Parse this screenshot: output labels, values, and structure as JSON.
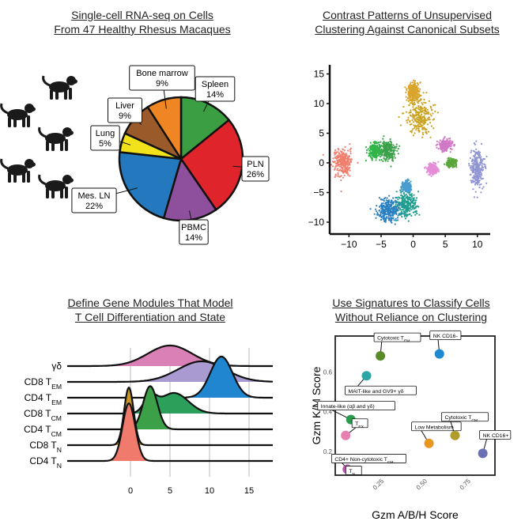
{
  "panels": {
    "a": {
      "title_line1": "Single-cell RNA-seq on Cells",
      "title_line2": "From 47 Healthy Rhesus Macaques"
    },
    "b": {
      "title_line1": "Contrast Patterns of Unsupervised",
      "title_line2": "Clustering Against Canonical Subsets"
    },
    "c": {
      "title_line1": "Define Gene Modules That Model",
      "title_line2": "T Cell Differentiation and State"
    },
    "d": {
      "title_line1": "Use Signatures to Classify Cells",
      "title_line2": "Without Reliance on Clustering"
    }
  },
  "icons": [
    "macaque-icon",
    "macaque-icon",
    "macaque-icon",
    "macaque-icon",
    "macaque-icon"
  ],
  "chart_data": [
    {
      "type": "pie",
      "slices": [
        {
          "label": "Spleen",
          "pct_text": "14%",
          "value": 14,
          "color": "#3b9e42"
        },
        {
          "label": "PLN",
          "pct_text": "26%",
          "value": 26,
          "color": "#e0242b"
        },
        {
          "label": "PBMC",
          "pct_text": "14%",
          "value": 14,
          "color": "#8e4f9c"
        },
        {
          "label": "Mes. LN",
          "pct_text": "22%",
          "value": 22,
          "color": "#2479be"
        },
        {
          "label": "Lung",
          "pct_text": "5%",
          "value": 5,
          "color": "#f2e21c"
        },
        {
          "label": "Liver",
          "pct_text": "9%",
          "value": 9,
          "color": "#9a5a2a"
        },
        {
          "label": "Bone marrow",
          "pct_text": "9%",
          "value": 9,
          "color": "#f08523"
        }
      ]
    },
    {
      "type": "scatter",
      "xticks": [
        "−10",
        "−5",
        "0",
        "5",
        "10"
      ],
      "xtick_values": [
        -10,
        -5,
        0,
        5,
        10
      ],
      "yticks": [
        "15",
        "10",
        "5",
        "0",
        "−5",
        "−10"
      ],
      "ytick_values": [
        15,
        10,
        5,
        0,
        -5,
        -10
      ],
      "xlim": [
        -13,
        12
      ],
      "ylim": [
        -12,
        16
      ],
      "clusters": [
        {
          "color": "#f07f6e",
          "cx": -11,
          "cy": 0,
          "sx": 1.3,
          "sy": 2.0
        },
        {
          "color": "#c9a21f",
          "cx": 1,
          "cy": 8,
          "sx": 1.8,
          "sy": 2.8
        },
        {
          "color": "#d9a52a",
          "cx": 0,
          "cy": 12,
          "sx": 0.8,
          "sy": 1.4
        },
        {
          "color": "#3ca14a",
          "cx": -4,
          "cy": 2,
          "sx": 1.1,
          "sy": 1.4
        },
        {
          "color": "#1f9e8e",
          "cx": -1,
          "cy": -7,
          "sx": 1.5,
          "sy": 2.0
        },
        {
          "color": "#2a7fc0",
          "cx": -4,
          "cy": -8,
          "sx": 1.5,
          "sy": 1.8
        },
        {
          "color": "#4a9ccf",
          "cx": -1,
          "cy": -4,
          "sx": 0.6,
          "sy": 0.8
        },
        {
          "color": "#9095d4",
          "cx": 10,
          "cy": -1,
          "sx": 1.0,
          "sy": 3.0
        },
        {
          "color": "#d178c7",
          "cx": 5,
          "cy": 3,
          "sx": 0.8,
          "sy": 0.8
        },
        {
          "color": "#e58dd7",
          "cx": 3,
          "cy": -1,
          "sx": 0.7,
          "sy": 0.8
        },
        {
          "color": "#5aa53c",
          "cx": 6,
          "cy": 0,
          "sx": 0.6,
          "sy": 0.6
        },
        {
          "color": "#32b44a",
          "cx": -6,
          "cy": 2,
          "sx": 0.8,
          "sy": 1.1
        }
      ]
    },
    {
      "type": "area",
      "xticks": [
        "0",
        "5",
        "10",
        "15"
      ],
      "xtick_values": [
        0,
        5,
        10,
        15
      ],
      "xlim": [
        -8,
        18
      ],
      "rows": [
        {
          "name": "γδ",
          "sub": "",
          "color": "#d980b7",
          "peaks": [
            [
              5,
              2.8,
              1.0
            ]
          ]
        },
        {
          "name": "CD8 T",
          "sub": "EM",
          "color": "#a99ad2",
          "peaks": [
            [
              9,
              3.0,
              1.0
            ]
          ]
        },
        {
          "name": "CD4 T",
          "sub": "EM",
          "color": "#1f86cf",
          "peaks": [
            [
              11.5,
              1.4,
              2.0
            ]
          ]
        },
        {
          "name": "CD8 T",
          "sub": "CM",
          "color": "#2ca05a",
          "peaks": [
            [
              5.5,
              1.8,
              1.0
            ],
            [
              2.5,
              0.8,
              0.7
            ]
          ]
        },
        {
          "name": "CD4 T",
          "sub": "CM",
          "color": "#3ca048",
          "peaks": [
            [
              2.5,
              0.9,
              2.1
            ]
          ]
        },
        {
          "name": "CD8 T",
          "sub": "N",
          "color": "#c89425",
          "peaks": [
            [
              -0.2,
              0.6,
              2.8
            ]
          ]
        },
        {
          "name": "CD4 T",
          "sub": "N",
          "color": "#f07a6c",
          "peaks": [
            [
              -0.2,
              0.8,
              2.8
            ]
          ]
        }
      ]
    },
    {
      "type": "scatter",
      "xlabel": "Gzm A/B/H Score",
      "ylabel": "Gzm K/M Score",
      "xticks": [
        "0.25",
        "0.50",
        "0.75"
      ],
      "xtick_values": [
        0.25,
        0.5,
        0.75
      ],
      "yticks": [
        "0.6",
        "0.4",
        "0.2"
      ],
      "ytick_values": [
        0.6,
        0.4,
        0.2
      ],
      "xlim": [
        0.0,
        0.92
      ],
      "ylim": [
        0.08,
        0.78
      ],
      "points": [
        {
          "label": "Cytotoxic T",
          "sub": "EM",
          "x": 0.26,
          "y": 0.68,
          "color": "#5a8a2a"
        },
        {
          "label": "NK CD16-",
          "sub": "",
          "x": 0.6,
          "y": 0.69,
          "color": "#1e88d0"
        },
        {
          "label": "MAIT-like and GV9+ γδ",
          "sub": "",
          "x": 0.18,
          "y": 0.58,
          "color": "#2fa6a6"
        },
        {
          "label": "Innate-like (αβ and γδ)",
          "sub": "",
          "x": 0.09,
          "y": 0.36,
          "color": "#2a9a4c"
        },
        {
          "label": "T",
          "sub": "EX",
          "x": 0.06,
          "y": 0.28,
          "color": "#e77fb1"
        },
        {
          "label": "Low Metabolism",
          "sub": "",
          "x": 0.54,
          "y": 0.24,
          "color": "#e8961e"
        },
        {
          "label": "Cytotoxic T",
          "sub": "CM",
          "x": 0.69,
          "y": 0.28,
          "color": "#b09c2a"
        },
        {
          "label": "NK CD16+",
          "sub": "",
          "x": 0.85,
          "y": 0.19,
          "color": "#6a70b4"
        },
        {
          "label": "CD4+ Non-cytotoxic T",
          "sub": "CM",
          "x": 0.07,
          "y": 0.11,
          "color": "#d14f6a"
        },
        {
          "label": "T",
          "sub": "N",
          "x": 0.07,
          "y": 0.11,
          "color": "#b05aa8"
        }
      ]
    }
  ]
}
